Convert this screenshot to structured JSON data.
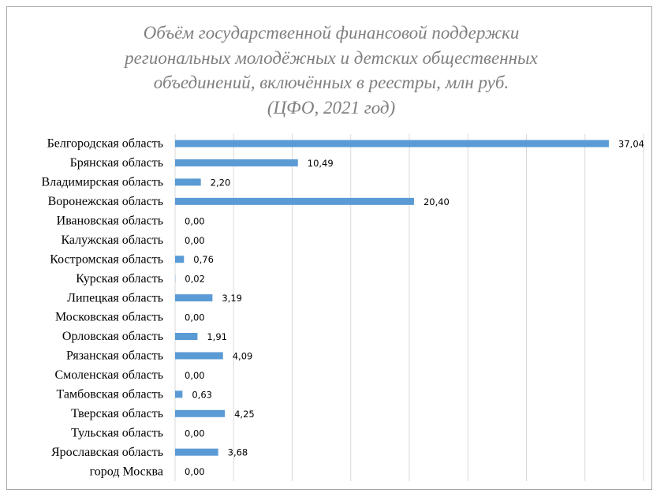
{
  "chart_data": {
    "type": "bar",
    "orientation": "horizontal",
    "title": "Объём государственной финансовой поддержки\nрегиональных молодёжных и детских общественных\nобъединений, включённых в реестры, млн руб.\n(ЦФО, 2021 год)",
    "categories": [
      "Белгородская область",
      "Брянская область",
      "Владимирская область",
      "Воронежская область",
      "Ивановская область",
      "Калужская область",
      "Костромская область",
      "Курская область",
      "Липецкая область",
      "Московская область",
      "Орловская область",
      "Рязанская область",
      "Смоленская область",
      "Тамбовская область",
      "Тверская область",
      "Тульская область",
      "Ярославская область",
      "город Москва"
    ],
    "values": [
      37.04,
      10.49,
      2.2,
      20.4,
      0,
      0,
      0.76,
      0.02,
      3.19,
      0,
      1.91,
      4.09,
      0,
      0.63,
      4.25,
      0,
      3.68,
      0
    ],
    "value_labels": [
      "37,04",
      "10,49",
      "2,20",
      "20,40",
      "0,00",
      "0,00",
      "0,76",
      "0,02",
      "3,19",
      "0,00",
      "1,91",
      "4,09",
      "0,00",
      "0,63",
      "4,25",
      "0,00",
      "3,68",
      "0,00"
    ],
    "color": "#5b9bd5",
    "xlim": [
      0,
      40
    ],
    "xticks": [
      0,
      5,
      10,
      15,
      20,
      25,
      30,
      35,
      40
    ],
    "grid": true
  }
}
